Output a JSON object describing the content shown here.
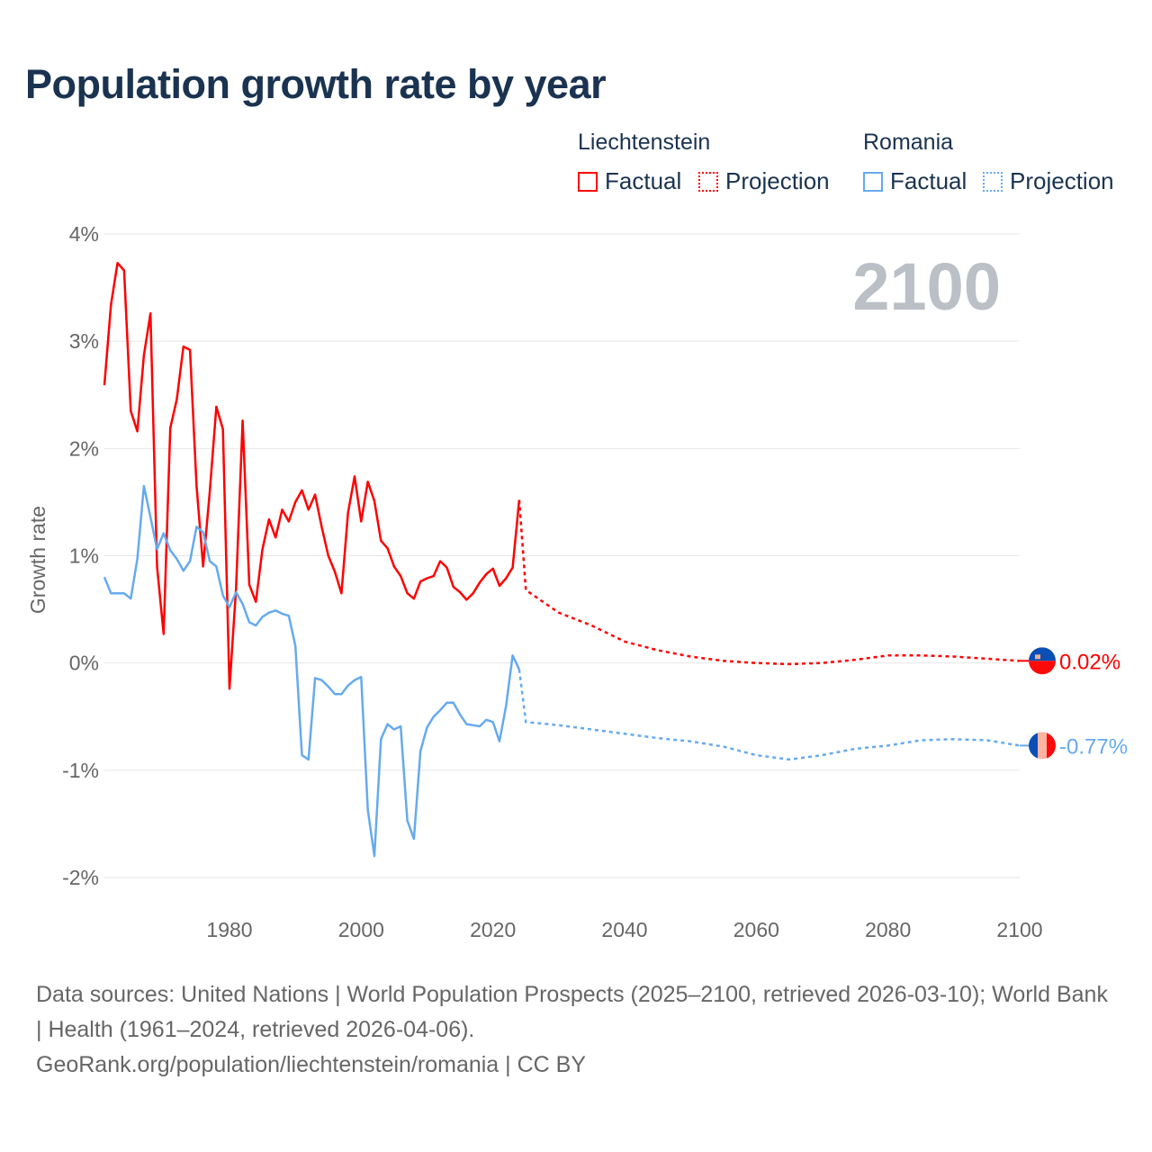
{
  "title": "Population growth rate by year",
  "colors": {
    "liechtenstein": "#ff0000",
    "romania": "#66aaee",
    "grid": "#e6e6e6",
    "axis_text": "#666666",
    "year_watermark": "#bbbfc6"
  },
  "legend": {
    "groups": [
      {
        "country": "Liechtenstein",
        "factual": "Factual",
        "projection": "Projection"
      },
      {
        "country": "Romania",
        "factual": "Factual",
        "projection": "Projection"
      }
    ]
  },
  "footer": {
    "sources": "Data sources: United Nations | World Population Prospects (2025–2100, retrieved 2026-03-10); World Bank | Health (1961–2024, retrieved 2026-04-06).",
    "link": "GeoRank.org/population/liechtenstein/romania | CC BY"
  },
  "chart_data": {
    "type": "line",
    "title": "Population growth rate by year",
    "ylabel": "Growth rate",
    "xlabel": "",
    "current_year_label": "2100",
    "xlim": [
      1961,
      2100
    ],
    "ylim": [
      -2,
      4
    ],
    "x_ticks": [
      "1980",
      "2000",
      "2020",
      "2040",
      "2060",
      "2080",
      "2100"
    ],
    "x_tick_values": [
      1980,
      2000,
      2020,
      2040,
      2060,
      2080,
      2100
    ],
    "y_ticks": [
      "4%",
      "3%",
      "2%",
      "1%",
      "0%",
      "-1%",
      "-2%"
    ],
    "y_tick_values": [
      4,
      3,
      2,
      1,
      0,
      -1,
      -2
    ],
    "grid": true,
    "legend_position": "top-right",
    "series": [
      {
        "name": "Liechtenstein",
        "end_label": "0.02%",
        "factual": {
          "start_year": 1961,
          "values": [
            2.59,
            3.34,
            3.73,
            3.66,
            2.35,
            2.16,
            2.87,
            3.26,
            0.9,
            0.27,
            2.19,
            2.46,
            2.95,
            2.92,
            1.65,
            0.9,
            1.6,
            2.39,
            2.18,
            -0.24,
            0.7,
            2.26,
            0.73,
            0.57,
            1.06,
            1.34,
            1.17,
            1.43,
            1.32,
            1.5,
            1.61,
            1.43,
            1.57,
            1.27,
            1.0,
            0.85,
            0.65,
            1.4,
            1.74,
            1.32,
            1.69,
            1.51,
            1.14,
            1.07,
            0.9,
            0.81,
            0.65,
            0.6,
            0.76,
            0.79,
            0.81,
            0.95,
            0.89,
            0.71,
            0.66,
            0.59,
            0.65,
            0.75,
            0.83,
            0.88,
            0.72,
            0.79,
            0.89,
            1.52
          ]
        },
        "projection": {
          "years": [
            2024,
            2025,
            2030,
            2035,
            2040,
            2045,
            2050,
            2055,
            2060,
            2065,
            2070,
            2075,
            2080,
            2085,
            2090,
            2095,
            2100
          ],
          "values": [
            1.52,
            0.68,
            0.47,
            0.35,
            0.2,
            0.12,
            0.06,
            0.02,
            0.0,
            -0.01,
            0.0,
            0.03,
            0.07,
            0.07,
            0.06,
            0.04,
            0.02
          ]
        }
      },
      {
        "name": "Romania",
        "end_label": "-0.77%",
        "factual": {
          "start_year": 1961,
          "values": [
            0.8,
            0.65,
            0.65,
            0.65,
            0.6,
            0.97,
            1.65,
            1.36,
            1.06,
            1.21,
            1.05,
            0.97,
            0.86,
            0.95,
            1.27,
            1.22,
            0.95,
            0.9,
            0.63,
            0.52,
            0.66,
            0.55,
            0.38,
            0.35,
            0.43,
            0.47,
            0.49,
            0.46,
            0.44,
            0.16,
            -0.86,
            -0.9,
            -0.14,
            -0.16,
            -0.22,
            -0.29,
            -0.29,
            -0.21,
            -0.16,
            -0.13,
            -1.37,
            -1.8,
            -0.71,
            -0.57,
            -0.62,
            -0.59,
            -1.47,
            -1.64,
            -0.82,
            -0.6,
            -0.5,
            -0.44,
            -0.37,
            -0.37,
            -0.48,
            -0.57,
            -0.58,
            -0.59,
            -0.53,
            -0.55,
            -0.73,
            -0.4,
            0.07,
            -0.06
          ]
        },
        "projection": {
          "years": [
            2024,
            2025,
            2030,
            2035,
            2040,
            2045,
            2050,
            2055,
            2060,
            2065,
            2070,
            2075,
            2080,
            2085,
            2090,
            2095,
            2100
          ],
          "values": [
            -0.06,
            -0.55,
            -0.58,
            -0.62,
            -0.66,
            -0.7,
            -0.73,
            -0.78,
            -0.86,
            -0.9,
            -0.86,
            -0.8,
            -0.77,
            -0.72,
            -0.71,
            -0.72,
            -0.77
          ]
        }
      }
    ]
  }
}
